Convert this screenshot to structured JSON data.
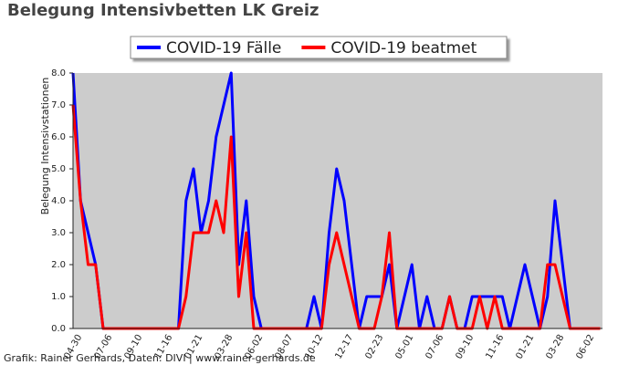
{
  "chart_data": {
    "type": "line",
    "title": "Belegung Intensivbetten LK Greiz",
    "y_label": "Belegung Intensivstationen",
    "footer": "Grafik: Rainer Gerhards, Daten: DIVI | www.rainer-gerhards.de",
    "categories": [
      "04-30",
      null,
      null,
      null,
      "07-06",
      null,
      null,
      null,
      "09-10",
      null,
      null,
      null,
      "11-16",
      null,
      null,
      null,
      "01-21",
      null,
      null,
      null,
      "03-28",
      null,
      null,
      null,
      "06-02",
      null,
      null,
      null,
      "08-07",
      null,
      null,
      null,
      "10-12",
      null,
      null,
      null,
      "12-17",
      null,
      null,
      null,
      "02-23",
      null,
      null,
      null,
      "05-01",
      null,
      null,
      null,
      "07-06",
      null,
      null,
      null,
      "09-10",
      null,
      null,
      null,
      "11-16",
      null,
      null,
      null,
      "01-21",
      null,
      null,
      null,
      "03-28",
      null,
      null,
      null,
      "06-02",
      null,
      null
    ],
    "series": [
      {
        "name": "COVID-19 Fälle",
        "color": "#0000ff",
        "values": [
          8,
          4,
          3,
          2,
          0,
          0,
          0,
          0,
          0,
          0,
          0,
          0,
          0,
          0,
          0,
          4,
          5,
          3,
          4,
          6,
          7,
          8,
          2,
          4,
          1,
          0,
          0,
          0,
          0,
          0,
          0,
          0,
          1,
          0,
          3,
          5,
          4,
          2,
          0,
          1,
          1,
          1,
          2,
          0,
          1,
          2,
          0,
          1,
          0,
          0,
          1,
          0,
          0,
          1,
          1,
          1,
          1,
          1,
          0,
          1,
          2,
          1,
          0,
          1,
          4,
          2,
          0,
          0,
          0,
          0,
          0
        ]
      },
      {
        "name": "COVID-19 beatmet",
        "color": "#ff0000",
        "values": [
          7,
          4,
          2,
          2,
          0,
          0,
          0,
          0,
          0,
          0,
          0,
          0,
          0,
          0,
          0,
          1,
          3,
          3,
          3,
          4,
          3,
          6,
          1,
          3,
          0,
          0,
          0,
          0,
          0,
          0,
          0,
          0,
          0,
          0,
          2,
          3,
          2,
          1,
          0,
          0,
          0,
          1,
          3,
          0,
          0,
          0,
          0,
          0,
          0,
          0,
          1,
          0,
          0,
          0,
          1,
          0,
          1,
          0,
          0,
          0,
          0,
          0,
          0,
          2,
          2,
          1,
          0,
          0,
          0,
          0,
          0
        ]
      }
    ],
    "ylim": [
      0,
      8
    ],
    "yticks": [
      {
        "value": 0,
        "label": "0.0"
      },
      {
        "value": 1,
        "label": "1.0"
      },
      {
        "value": 2,
        "label": "2.0"
      },
      {
        "value": 3,
        "label": "3.0"
      },
      {
        "value": 4,
        "label": "4.0"
      },
      {
        "value": 5,
        "label": "5.0"
      },
      {
        "value": 6,
        "label": "6.0"
      },
      {
        "value": 7,
        "label": "7.0"
      },
      {
        "value": 8,
        "label": "8.0"
      }
    ],
    "legend": "top"
  }
}
